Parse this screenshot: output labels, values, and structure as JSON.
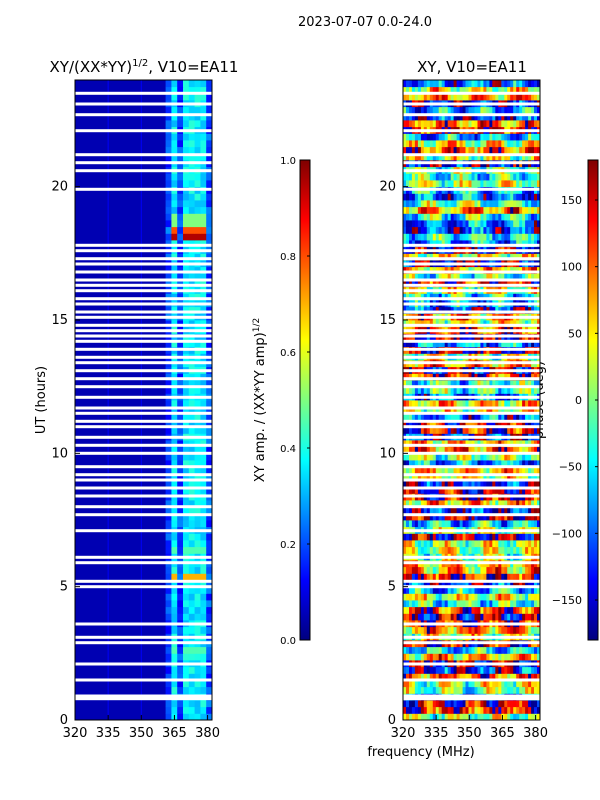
{
  "figure": {
    "suptitle": "2023-07-07 0.0-24.0",
    "shared_xlabel": "frequency (MHz)"
  },
  "colormap": {
    "name": "jet",
    "stops": [
      "#00007f",
      "#0000ff",
      "#007fff",
      "#00ffff",
      "#7fff7f",
      "#ffff00",
      "#ff7f00",
      "#ff0000",
      "#7f0000"
    ],
    "gap_color": "#ffffff"
  },
  "chart_data": [
    {
      "type": "heatmap",
      "title": "XY/(XX*YY)^1/2, V10=EA11",
      "title_base": "XY/(XX*YY)",
      "title_exp": "1/2",
      "title_suffix": ", V10=EA11",
      "xlabel": "",
      "ylabel": "UT (hours)",
      "xlim": [
        320,
        382
      ],
      "ylim": [
        0,
        24
      ],
      "xticks": [
        320,
        335,
        350,
        365,
        380
      ],
      "yticks": [
        0,
        5,
        10,
        15,
        20
      ],
      "colorbar": {
        "label": "XY amp. / (XX*YY amp)",
        "label_exp": "1/2",
        "range": [
          0.0,
          1.0
        ],
        "ticks": [
          "0.0",
          "0.2",
          "0.4",
          "0.6",
          "0.8",
          "1.0"
        ],
        "tick_values": [
          0,
          0.2,
          0.4,
          0.6,
          0.8,
          1.0
        ]
      },
      "background_value": 0.05,
      "active_band_mhz": [
        361,
        382
      ],
      "channel_stripes_mhz": [
        365,
        370,
        374,
        378
      ],
      "hot_spots": [
        {
          "t_start": 17.9,
          "t_end": 18.2,
          "value": 0.95
        },
        {
          "t_start": 18.2,
          "t_end": 18.5,
          "value": 0.8
        },
        {
          "t_start": 18.5,
          "t_end": 18.9,
          "value": 0.5
        },
        {
          "t_start": 5.2,
          "t_end": 5.4,
          "value": 0.7
        },
        {
          "t_start": 6.1,
          "t_end": 6.4,
          "value": 0.45
        },
        {
          "t_start": 2.4,
          "t_end": 2.7,
          "value": 0.45
        }
      ]
    },
    {
      "type": "heatmap",
      "title": "XY, V10=EA11",
      "xlabel": "",
      "ylabel": "",
      "xlim": [
        320,
        382
      ],
      "ylim": [
        0,
        24
      ],
      "xticks": [
        320,
        335,
        350,
        365,
        380
      ],
      "yticks": [
        0,
        5,
        10,
        15,
        20
      ],
      "colorbar": {
        "label": "phase (deg)",
        "range": [
          -180,
          180
        ],
        "ticks": [
          "−150",
          "−100",
          "−50",
          "0",
          "50",
          "100",
          "150"
        ],
        "tick_values": [
          -150,
          -100,
          -50,
          0,
          50,
          100,
          150
        ]
      }
    }
  ],
  "flagged_gaps_hours": [
    0.8,
    0.9,
    1.5,
    2.1,
    2.9,
    3.1,
    3.6,
    5.0,
    5.2,
    5.9,
    6.1,
    7.1,
    7.7,
    8.0,
    8.4,
    8.7,
    9.0,
    9.2,
    9.5,
    10.0,
    10.3,
    10.6,
    11.0,
    11.2,
    11.5,
    11.7,
    12.1,
    12.5,
    12.8,
    13.1,
    13.4,
    13.6,
    13.9,
    14.2,
    14.4,
    14.6,
    14.8,
    15.1,
    15.3,
    15.6,
    15.8,
    16.1,
    16.3,
    16.5,
    16.8,
    17.1,
    17.3,
    17.6,
    17.8,
    19.9,
    20.6,
    20.9,
    21.2,
    22.1,
    22.7,
    23.1,
    23.5
  ]
}
